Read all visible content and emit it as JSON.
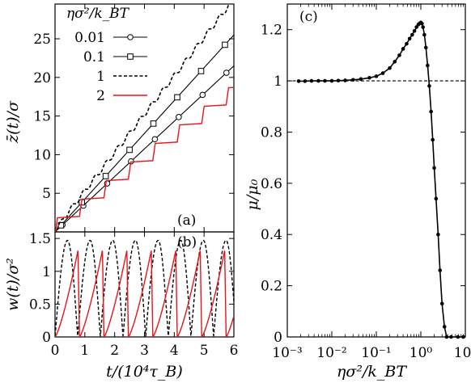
{
  "chart_data": [
    {
      "panel": "(a)",
      "type": "line",
      "xlabel": "",
      "ylabel": "z̄(t)/σ",
      "xlim": [
        0,
        6
      ],
      "ylim": [
        0,
        29.5
      ],
      "x_ticks": [],
      "y_ticks": [
        5,
        10,
        15,
        20,
        25
      ],
      "y_tick_labels": [
        "5",
        "10",
        "15",
        "20",
        "25"
      ],
      "legend_title": "ησ²/k_BT",
      "legend_position": "top-left",
      "series": [
        {
          "name": "0.01",
          "style": "solid-circle",
          "color": "#000000",
          "x": [
            0,
            6
          ],
          "y": [
            0,
            21.5
          ],
          "marker_x": [
            0.25,
            0.95,
            1.75,
            2.55,
            3.35,
            4.15,
            4.95,
            5.75
          ]
        },
        {
          "name": "0.1",
          "style": "solid-square",
          "color": "#000000",
          "x": [
            0,
            6
          ],
          "y": [
            0,
            25.5
          ],
          "marker_x": [
            0.2,
            0.9,
            1.7,
            2.5,
            3.3,
            4.1,
            4.9,
            5.7
          ]
        },
        {
          "name": "1",
          "style": "dashed",
          "color": "#000000",
          "x": [
            0,
            6
          ],
          "y": [
            0,
            29.8
          ],
          "period": 0.76,
          "amp": 0.55
        },
        {
          "name": "2",
          "style": "solid",
          "color": "#e8141a",
          "x": [
            0,
            6
          ],
          "y": [
            0,
            17.6
          ],
          "period": 0.82,
          "rise": 0.1
        }
      ],
      "label_text": "(a)"
    },
    {
      "panel": "(b)",
      "type": "line",
      "xlabel": "t/(10⁴τ_B)",
      "ylabel": "w(t)/σ²",
      "xlim": [
        0,
        6
      ],
      "ylim": [
        0,
        1.6
      ],
      "x_ticks": [
        0,
        1,
        2,
        3,
        4,
        5,
        6
      ],
      "x_tick_labels": [
        "0",
        "1",
        "2",
        "3",
        "4",
        "5",
        "6"
      ],
      "y_ticks": [
        0,
        0.5,
        1,
        1.5
      ],
      "y_tick_labels": [
        "0",
        "0.5",
        "1",
        "1.5"
      ],
      "series": [
        {
          "name": "1",
          "style": "dashed",
          "color": "#000000",
          "x": [
            0,
            6
          ],
          "y": [
            0,
            1.47
          ],
          "period": 0.76
        },
        {
          "name": "2",
          "style": "solid",
          "color": "#e8141a",
          "x": [
            0,
            6
          ],
          "y": [
            0,
            1.32
          ],
          "period": 0.82
        }
      ],
      "label_text": "(b)"
    },
    {
      "panel": "(c)",
      "type": "line",
      "xlabel": "ησ²/k_BT",
      "ylabel": "μ/μ₀",
      "xscale": "log",
      "xlim": [
        0.001,
        10
      ],
      "ylim": [
        0,
        1.3
      ],
      "x_ticks": [
        0.001,
        0.01,
        0.1,
        1,
        10
      ],
      "x_tick_labels": [
        "10⁻³",
        "10⁻²",
        "10⁻¹",
        "10⁰",
        "10¹"
      ],
      "y_ticks": [
        0,
        0.2,
        0.4,
        0.6,
        0.8,
        1,
        1.2
      ],
      "y_tick_labels": [
        "0",
        "0.2",
        "0.4",
        "0.6",
        "0.8",
        "1",
        "1.2"
      ],
      "reference_line": 1,
      "series": [
        {
          "name": "μ/μ0",
          "style": "solid-dot",
          "color": "#000000",
          "x": [
            0.0018,
            0.0025,
            0.0035,
            0.005,
            0.007,
            0.01,
            0.014,
            0.02,
            0.03,
            0.045,
            0.07,
            0.1,
            0.14,
            0.2,
            0.26,
            0.33,
            0.4,
            0.48,
            0.56,
            0.64,
            0.72,
            0.8,
            0.88,
            0.95,
            1.0,
            1.06,
            1.12,
            1.2,
            1.3,
            1.42,
            1.55,
            1.7,
            1.85,
            2.0,
            2.2,
            2.45,
            2.7,
            3.0,
            3.4,
            3.8,
            4.8,
            6.8,
            9.0
          ],
          "y": [
            0.999,
            0.999,
            1.0,
            1.0,
            1.0,
            1.0,
            1.001,
            1.002,
            1.004,
            1.007,
            1.012,
            1.018,
            1.03,
            1.05,
            1.075,
            1.1,
            1.125,
            1.145,
            1.165,
            1.18,
            1.195,
            1.21,
            1.22,
            1.225,
            1.228,
            1.224,
            1.21,
            1.18,
            1.13,
            1.06,
            0.98,
            0.88,
            0.77,
            0.66,
            0.54,
            0.4,
            0.26,
            0.13,
            0.04,
            0.0,
            0.0,
            0.0,
            0.0
          ]
        }
      ],
      "label_text": "(c)"
    }
  ]
}
